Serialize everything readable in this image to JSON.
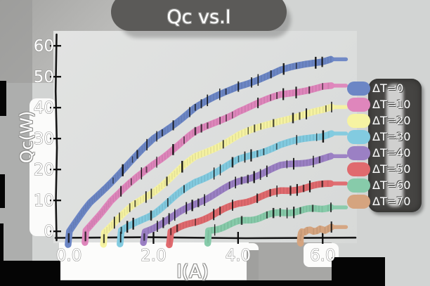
{
  "title": "Qc vs.I",
  "palette": {
    "canvas_background": "#d2d4d3",
    "title_pill": "#5b5a58",
    "legend_background": "#454442",
    "text_color": "#ffffff",
    "text_outline": "#8f8f8d",
    "axis_color": "#161616"
  },
  "chart_data": {
    "type": "line",
    "style": "xkcd-handdrawn",
    "title": "Qc vs.I",
    "xlabel": "I(A)",
    "ylabel": "Qc(W)",
    "xlim": [
      -0.3,
      6.76
    ],
    "ylim": [
      -2,
      63
    ],
    "grid": false,
    "legend_position": "center right",
    "x_ticks": {
      "values": [
        0,
        2,
        4,
        6
      ],
      "labels": [
        "0.0",
        "2.0",
        "4.0",
        "6.0"
      ]
    },
    "y_ticks": {
      "values": [
        0,
        10,
        20,
        30,
        40,
        50,
        60
      ],
      "labels": [
        "0",
        "10",
        "20",
        "30",
        "40",
        "50",
        "60"
      ]
    },
    "series": [
      {
        "name": "ΔT=0",
        "color": "#6c86c5",
        "points": [
          [
            0,
            0
          ],
          [
            0.5,
            9
          ],
          [
            1,
            16
          ],
          [
            2,
            30
          ],
          [
            3,
            40
          ],
          [
            4,
            47
          ],
          [
            5,
            52
          ],
          [
            6,
            55
          ],
          [
            6.2,
            56
          ]
        ]
      },
      {
        "name": "ΔT=10",
        "color": "#df86bc",
        "points": [
          [
            0.4,
            0
          ],
          [
            1,
            10
          ],
          [
            2,
            22
          ],
          [
            3,
            32
          ],
          [
            4,
            39
          ],
          [
            5,
            44
          ],
          [
            6,
            47
          ],
          [
            6.2,
            47
          ]
        ]
      },
      {
        "name": "ΔT=20",
        "color": "#f6f3a2",
        "points": [
          [
            0.85,
            0
          ],
          [
            1.5,
            8
          ],
          [
            2,
            13
          ],
          [
            3,
            24
          ],
          [
            4,
            31
          ],
          [
            5,
            36
          ],
          [
            6,
            39
          ],
          [
            6.2,
            40
          ]
        ]
      },
      {
        "name": "ΔT=30",
        "color": "#82cbe0",
        "points": [
          [
            1.25,
            0
          ],
          [
            2,
            6
          ],
          [
            3,
            16
          ],
          [
            4,
            23
          ],
          [
            5,
            28
          ],
          [
            6,
            31
          ],
          [
            6.2,
            32
          ]
        ]
      },
      {
        "name": "ΔT=40",
        "color": "#9b80c4",
        "points": [
          [
            1.8,
            0
          ],
          [
            2.5,
            5
          ],
          [
            3,
            9
          ],
          [
            4,
            16
          ],
          [
            5,
            21
          ],
          [
            6,
            23.5
          ],
          [
            6.2,
            24
          ]
        ]
      },
      {
        "name": "ΔT=50",
        "color": "#e06a6e",
        "points": [
          [
            2.4,
            0
          ],
          [
            3,
            3
          ],
          [
            4,
            9
          ],
          [
            5,
            13
          ],
          [
            6,
            15
          ],
          [
            6.2,
            15.5
          ]
        ]
      },
      {
        "name": "ΔT=60",
        "color": "#87cbaa",
        "points": [
          [
            3.3,
            0
          ],
          [
            4,
            3
          ],
          [
            5,
            6
          ],
          [
            6,
            7.5
          ],
          [
            6.2,
            8
          ]
        ]
      },
      {
        "name": "ΔT=70",
        "color": "#d5a47f",
        "points": [
          [
            5.5,
            0
          ],
          [
            6,
            0.5
          ],
          [
            6.2,
            1
          ]
        ]
      }
    ]
  }
}
